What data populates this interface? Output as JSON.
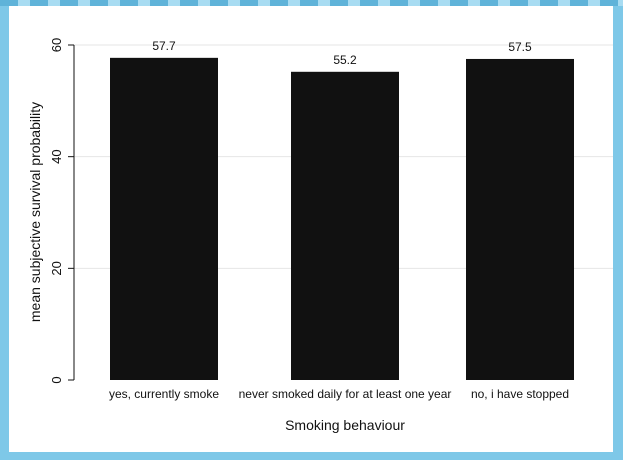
{
  "chart_data": {
    "type": "bar",
    "categories": [
      "yes, currently smoke",
      "never smoked daily for at least one year",
      "no, i have stopped"
    ],
    "values": [
      57.7,
      55.2,
      57.5
    ],
    "value_labels": [
      "57.7",
      "55.2",
      "57.5"
    ],
    "xlabel": "Smoking behaviour",
    "ylabel": "mean subjective survival probability",
    "ylim": [
      0,
      60
    ],
    "yticks": [
      0,
      20,
      40,
      60
    ],
    "grid": true,
    "bar_color": "#111111"
  }
}
